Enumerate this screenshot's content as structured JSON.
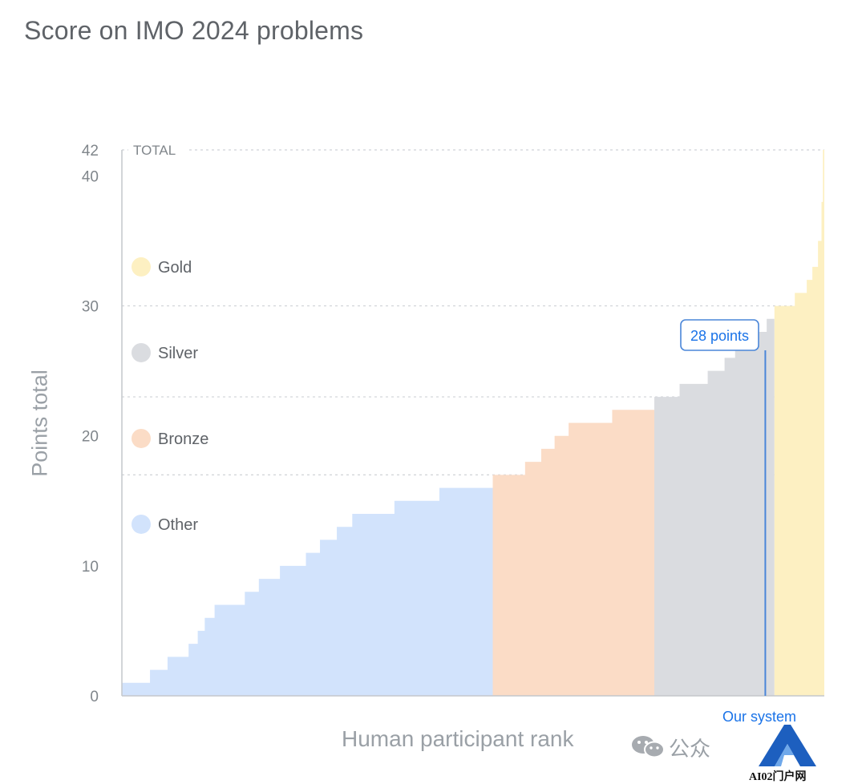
{
  "chart_data": {
    "type": "bar",
    "title": "Score on IMO 2024 problems",
    "xlabel": "Human participant rank",
    "ylabel": "Points total",
    "ylim": [
      0,
      42
    ],
    "yticks": [
      0,
      10,
      20,
      30,
      40,
      42
    ],
    "total_label": "TOTAL",
    "grid": "dotted horizontal lines at 17, 23, 30, 42",
    "legend": [
      {
        "name": "Gold",
        "color": "#fdf0c2"
      },
      {
        "name": "Silver",
        "color": "#dadce0"
      },
      {
        "name": "Bronze",
        "color": "#fbdcc6"
      },
      {
        "name": "Other",
        "color": "#d2e3fc"
      }
    ],
    "series": [
      {
        "name": "Other",
        "color": "#d2e3fc",
        "steps": [
          [
            0,
            1
          ],
          [
            4,
            2
          ],
          [
            6.5,
            3
          ],
          [
            9.5,
            4
          ],
          [
            10.8,
            5
          ],
          [
            11.8,
            6
          ],
          [
            13.2,
            7
          ],
          [
            17.5,
            8
          ],
          [
            19.5,
            9
          ],
          [
            22.5,
            10
          ],
          [
            26.2,
            11
          ],
          [
            28.2,
            12
          ],
          [
            30.6,
            13
          ],
          [
            32.8,
            14
          ],
          [
            38.8,
            15
          ],
          [
            45.2,
            16
          ],
          [
            52.8,
            16
          ]
        ]
      },
      {
        "name": "Bronze",
        "color": "#fbdcc6",
        "steps": [
          [
            52.8,
            17
          ],
          [
            57.4,
            18
          ],
          [
            59.7,
            19
          ],
          [
            61.6,
            20
          ],
          [
            63.6,
            21
          ],
          [
            69.8,
            22
          ],
          [
            75.8,
            22
          ]
        ]
      },
      {
        "name": "Silver",
        "color": "#dadce0",
        "steps": [
          [
            75.8,
            23
          ],
          [
            79.4,
            24
          ],
          [
            83.4,
            25
          ],
          [
            85.8,
            26
          ],
          [
            87.3,
            27
          ],
          [
            89.3,
            28
          ],
          [
            91.8,
            29
          ],
          [
            92.9,
            29
          ]
        ]
      },
      {
        "name": "Gold",
        "color": "#fdf0c2",
        "steps": [
          [
            92.9,
            30
          ],
          [
            95.8,
            31
          ],
          [
            97.5,
            32
          ],
          [
            98.3,
            33
          ],
          [
            99.1,
            35
          ],
          [
            99.6,
            38
          ],
          [
            99.8,
            42
          ],
          [
            100,
            42
          ]
        ]
      }
    ],
    "annotations": [
      {
        "label": "28 points",
        "x": 91.6,
        "y": 28,
        "marker_label": "Our system"
      }
    ]
  },
  "watermark": {
    "text": "公众",
    "logo_text": "AI02门户网"
  }
}
